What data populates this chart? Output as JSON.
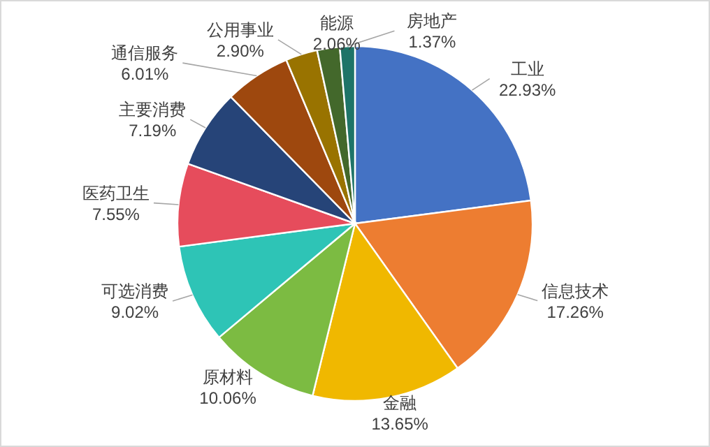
{
  "chart_data": {
    "type": "pie",
    "categories": [
      "工业",
      "信息技术",
      "金融",
      "原材料",
      "可选消费",
      "医药卫生",
      "主要消费",
      "通信服务",
      "公用事业",
      "能源",
      "房地产"
    ],
    "values": [
      22.93,
      17.26,
      13.65,
      10.06,
      9.02,
      7.55,
      7.19,
      6.01,
      2.9,
      2.06,
      1.37
    ],
    "value_labels": [
      "22.93%",
      "17.26%",
      "13.65%",
      "10.06%",
      "9.02%",
      "7.55%",
      "7.19%",
      "6.01%",
      "2.90%",
      "2.06%",
      "1.37%"
    ],
    "colors": [
      "#4472c4",
      "#ed7d31",
      "#f0b800",
      "#7cbb42",
      "#2ec4b6",
      "#e64c5c",
      "#264478",
      "#9e480e",
      "#997300",
      "#43682b",
      "#1e7468"
    ],
    "legend": false
  }
}
